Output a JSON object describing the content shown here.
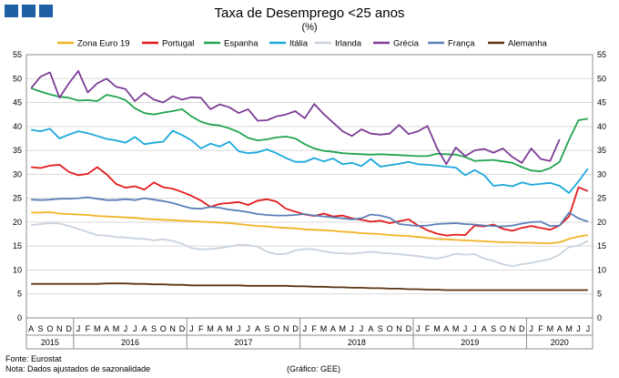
{
  "header": {
    "title": "Taxa de Desemprego <25 anos",
    "subtitle": "(%)"
  },
  "footer": {
    "source": "Fonte: Eurostat",
    "note": "Nota: Dados ajustados de sazonalidade",
    "credit": "(Gráfico: GEE)"
  },
  "chart_data": {
    "type": "line",
    "title": "Taxa de Desemprego <25 anos",
    "subtitle": "(%)",
    "ylim": [
      0,
      55
    ],
    "yticks": [
      0,
      5,
      10,
      15,
      20,
      25,
      30,
      35,
      40,
      45,
      50,
      55
    ],
    "grid": true,
    "legend_position": "top",
    "month_labels": [
      "A",
      "S",
      "O",
      "N",
      "D",
      "J",
      "F",
      "M",
      "A",
      "M",
      "J",
      "J",
      "A",
      "S",
      "O",
      "N",
      "D",
      "J",
      "F",
      "M",
      "A",
      "M",
      "J",
      "J",
      "A",
      "S",
      "O",
      "N",
      "D",
      "J",
      "F",
      "M",
      "A",
      "M",
      "J",
      "J",
      "A",
      "S",
      "O",
      "N",
      "D",
      "J",
      "F",
      "M",
      "A",
      "M",
      "J",
      "J",
      "A",
      "S",
      "O",
      "N",
      "D",
      "J",
      "F",
      "M",
      "A",
      "M",
      "J",
      "J"
    ],
    "years": [
      {
        "label": "2015",
        "start": 0,
        "end": 4
      },
      {
        "label": "2016",
        "start": 5,
        "end": 16
      },
      {
        "label": "2017",
        "start": 17,
        "end": 28
      },
      {
        "label": "2018",
        "start": 29,
        "end": 40
      },
      {
        "label": "2019",
        "start": 41,
        "end": 52
      },
      {
        "label": "2020",
        "start": 53,
        "end": 59
      }
    ],
    "series": [
      {
        "name": "Zona Euro 19",
        "color": "#f0b323",
        "values": [
          22,
          22,
          22.1,
          21.8,
          21.7,
          21.6,
          21.5,
          21.3,
          21.2,
          21.1,
          21,
          20.9,
          20.7,
          20.6,
          20.5,
          20.4,
          20.3,
          20.2,
          20.1,
          20,
          19.9,
          19.8,
          19.6,
          19.4,
          19.2,
          19.1,
          18.9,
          18.8,
          18.7,
          18.5,
          18.4,
          18.3,
          18.2,
          18,
          17.9,
          17.7,
          17.6,
          17.5,
          17.3,
          17.2,
          17.1,
          16.9,
          16.7,
          16.5,
          16.4,
          16.3,
          16.2,
          16.1,
          16,
          15.9,
          15.8,
          15.8,
          15.7,
          15.7,
          15.6,
          15.6,
          15.8,
          16.5,
          17,
          17.3
        ]
      },
      {
        "name": "Portugal",
        "color": "#e11b1b",
        "values": [
          31.5,
          31.3,
          31.8,
          32,
          30.5,
          29.8,
          30.1,
          31.5,
          30,
          28,
          27.2,
          27.5,
          26.8,
          28.3,
          27.3,
          27,
          26.3,
          25.5,
          24.5,
          23.2,
          23.8,
          24,
          24.2,
          23.6,
          24.5,
          24.8,
          24.3,
          22.8,
          22.2,
          21.6,
          21.3,
          21.8,
          21.2,
          21.4,
          20.8,
          20.5,
          20.1,
          20.3,
          19.8,
          20.2,
          20.6,
          19.3,
          18.3,
          17.6,
          17.2,
          17.4,
          17.3,
          19.3,
          19.1,
          19.5,
          18.6,
          18.2,
          18.8,
          19.2,
          18.8,
          18.4,
          19.3,
          21.2,
          27.3,
          26.5
        ]
      },
      {
        "name": "Espanha",
        "color": "#21a350",
        "values": [
          48,
          47.3,
          46.7,
          46.2,
          46,
          45.4,
          45.5,
          45.3,
          46.6,
          46.2,
          45.5,
          43.8,
          42.8,
          42.5,
          42.9,
          43.2,
          43.6,
          42.1,
          41,
          40.4,
          40.2,
          39.6,
          38.8,
          37.6,
          37.1,
          37.3,
          37.7,
          37.9,
          37.5,
          36.3,
          35.4,
          34.9,
          34.7,
          34.4,
          34.3,
          34.2,
          34.1,
          34.2,
          34.1,
          34,
          33.9,
          33.8,
          33.8,
          34.3,
          34.2,
          34.1,
          33.6,
          32.8,
          32.9,
          33,
          32.7,
          32.4,
          31.5,
          30.8,
          30.6,
          31.3,
          32.6,
          37.2,
          41.3,
          41.6
        ]
      },
      {
        "name": "Itália",
        "color": "#1aa7dc",
        "values": [
          39.3,
          39,
          39.5,
          37.5,
          38.3,
          39,
          38.6,
          38,
          37.4,
          37.1,
          36.6,
          37.8,
          36.3,
          36.6,
          36.8,
          39.1,
          38.2,
          37.1,
          35.4,
          36.4,
          35.8,
          36.8,
          34.8,
          34.4,
          34.6,
          35.2,
          34.4,
          33.4,
          32.6,
          32.6,
          33.4,
          32.7,
          33.3,
          32.1,
          32.4,
          31.7,
          33.2,
          31.6,
          31.9,
          32.2,
          32.6,
          32.1,
          32,
          31.8,
          31.6,
          31.4,
          29.8,
          30.9,
          29.8,
          27.6,
          27.8,
          27.5,
          28.3,
          27.8,
          28,
          28.2,
          27.6,
          26.1,
          28.5,
          31.2
        ]
      },
      {
        "name": "Irlanda",
        "color": "#c9d3df",
        "values": [
          19.4,
          19.6,
          19.8,
          19.7,
          19.2,
          18.6,
          17.9,
          17.3,
          17.2,
          16.9,
          16.8,
          16.6,
          16.5,
          16.2,
          16.4,
          16.1,
          15.5,
          14.6,
          14.3,
          14.4,
          14.6,
          14.9,
          15.3,
          15.2,
          14.9,
          13.8,
          13.3,
          13.4,
          14.1,
          14.4,
          14.3,
          13.9,
          13.6,
          13.5,
          13.4,
          13.6,
          13.8,
          13.6,
          13.5,
          13.3,
          13.1,
          12.9,
          12.6,
          12.4,
          12.8,
          13.4,
          13.2,
          13.3,
          12.4,
          11.9,
          11.2,
          10.8,
          11.2,
          11.5,
          11.9,
          12.3,
          13.2,
          14.8,
          15.1,
          16.1
        ]
      },
      {
        "name": "Grécia",
        "color": "#7d3c98",
        "values": [
          48,
          50.4,
          51.3,
          46,
          49,
          51.6,
          47.1,
          49,
          50,
          48.3,
          47.8,
          45.3,
          47,
          45.6,
          45,
          46.3,
          45.6,
          46.1,
          46,
          43.6,
          44.6,
          44,
          42.8,
          43.6,
          41.2,
          41.3,
          42.1,
          42.5,
          43.2,
          41.7,
          44.7,
          42.6,
          40.8,
          39,
          38,
          39.4,
          38.5,
          38.3,
          38.5,
          40.3,
          38.4,
          39,
          40.1,
          35.5,
          32.1,
          35.6,
          33.8,
          35,
          35.3,
          34.5,
          35.4,
          33.6,
          32.4,
          35.4,
          33.2,
          32.8,
          37.3,
          null,
          null,
          null
        ]
      },
      {
        "name": "França",
        "color": "#5b7fb8",
        "values": [
          24.7,
          24.6,
          24.7,
          24.9,
          24.9,
          25,
          25.2,
          24.9,
          24.6,
          24.6,
          24.8,
          24.6,
          25,
          24.7,
          24.4,
          24,
          23.4,
          22.9,
          22.8,
          23.2,
          23,
          22.6,
          22.4,
          22.1,
          21.7,
          21.5,
          21.4,
          21.4,
          21.5,
          21.7,
          21.4,
          21.2,
          21,
          20.8,
          20.6,
          20.8,
          21.6,
          21.4,
          20.9,
          19.6,
          19.4,
          19.2,
          19.3,
          19.6,
          19.7,
          19.8,
          19.6,
          19.5,
          19.3,
          19.2,
          19.1,
          19.3,
          19.7,
          20,
          20.1,
          19.2,
          19.3,
          22,
          20.8,
          20.1
        ]
      },
      {
        "name": "Alemanha",
        "color": "#5c3411",
        "values": [
          7.1,
          7.1,
          7.1,
          7.1,
          7.1,
          7.1,
          7.1,
          7.1,
          7.2,
          7.2,
          7.2,
          7.1,
          7.1,
          7,
          7,
          6.9,
          6.9,
          6.8,
          6.8,
          6.8,
          6.8,
          6.8,
          6.8,
          6.7,
          6.7,
          6.7,
          6.7,
          6.7,
          6.6,
          6.6,
          6.5,
          6.5,
          6.4,
          6.4,
          6.3,
          6.3,
          6.2,
          6.2,
          6.1,
          6.1,
          6,
          6,
          5.9,
          5.9,
          5.8,
          5.8,
          5.8,
          5.8,
          5.8,
          5.8,
          5.8,
          5.8,
          5.8,
          5.8,
          5.8,
          5.8,
          5.8,
          5.8,
          5.8,
          5.8
        ]
      }
    ]
  }
}
